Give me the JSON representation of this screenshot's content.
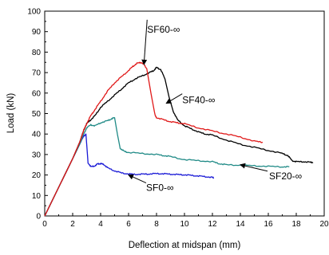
{
  "chart_data": {
    "type": "line",
    "title": "",
    "xlabel": "Deflection at midspan (mm)",
    "ylabel": "Load (kN)",
    "xlim": [
      0,
      20
    ],
    "ylim": [
      0,
      100
    ],
    "xticks": [
      0,
      2,
      4,
      6,
      8,
      10,
      12,
      14,
      16,
      18,
      20
    ],
    "yticks": [
      0,
      10,
      20,
      30,
      40,
      50,
      60,
      70,
      80,
      90,
      100
    ],
    "grid": false,
    "legend": "none",
    "series": [
      {
        "name": "SF0-∞",
        "color": "#1a1ad6",
        "x": [
          0,
          0.5,
          1.0,
          1.5,
          2.0,
          2.5,
          2.8,
          2.95,
          3.1,
          3.3,
          3.6,
          3.8,
          4.0,
          4.2,
          4.5,
          5.0,
          5.5,
          6.0,
          6.5,
          7.0,
          7.5,
          8.0,
          8.5,
          9.0,
          9.5,
          10.0,
          10.5,
          11.0,
          11.5,
          12.0,
          12.1
        ],
        "y": [
          0,
          7,
          14,
          21,
          28,
          35,
          39,
          40,
          26,
          24,
          24.5,
          25.5,
          25.5,
          25.3,
          23.5,
          22,
          21,
          20.5,
          20.3,
          20.4,
          20.5,
          20.7,
          20.6,
          20.4,
          20.2,
          20.1,
          19.8,
          19.5,
          19.2,
          18.8,
          18.7
        ]
      },
      {
        "name": "SF20-∞",
        "color": "#1f8a86",
        "x": [
          0,
          0.5,
          1.0,
          1.5,
          2.0,
          2.5,
          2.8,
          3.0,
          3.3,
          3.6,
          4.0,
          4.5,
          4.8,
          5.0,
          5.2,
          5.4,
          5.7,
          6.0,
          7.0,
          8.0,
          8.5,
          9.0,
          10.0,
          11.0,
          12.0,
          12.5,
          13.0,
          14.0,
          15.0,
          16.0,
          17.0,
          17.5
        ],
        "y": [
          0,
          7,
          14,
          21,
          28,
          35,
          40,
          43,
          44.5,
          44,
          45.5,
          46.5,
          47.5,
          48,
          40,
          33,
          31.5,
          31,
          30.5,
          30,
          29.5,
          29,
          27.5,
          27,
          26.5,
          25.5,
          25,
          24.8,
          24.5,
          24.2,
          24,
          24
        ]
      },
      {
        "name": "SF40-∞",
        "color": "#000000",
        "x": [
          0,
          0.5,
          1.0,
          1.5,
          2.0,
          2.5,
          2.8,
          3.0,
          3.3,
          3.6,
          4.0,
          4.5,
          5.0,
          5.5,
          6.0,
          6.5,
          7.0,
          7.5,
          7.8,
          8.0,
          8.3,
          8.6,
          8.9,
          9.2,
          9.5,
          10.0,
          10.5,
          11.0,
          11.5,
          12.0,
          13.0,
          14.0,
          15.0,
          16.0,
          17.0,
          17.4,
          17.7,
          18.0,
          18.5,
          19.0,
          19.2
        ],
        "y": [
          0,
          7,
          14,
          21,
          28,
          36,
          42,
          45,
          47,
          49,
          53,
          56,
          59,
          62,
          65,
          67,
          68.5,
          70,
          71,
          72.5,
          71.5,
          67,
          58,
          51,
          47,
          44,
          42.5,
          41,
          40,
          39.5,
          37,
          35,
          33.5,
          32,
          30.5,
          29.5,
          27,
          26.5,
          26.5,
          26.2,
          26.2
        ]
      },
      {
        "name": "SF60-∞",
        "color": "#e01818",
        "x": [
          0,
          0.5,
          1.0,
          1.5,
          2.0,
          2.5,
          2.8,
          3.0,
          3.3,
          3.6,
          4.0,
          4.5,
          5.0,
          5.5,
          6.0,
          6.3,
          6.6,
          6.9,
          7.1,
          7.3,
          7.6,
          7.9,
          8.0,
          8.5,
          9.0,
          9.5,
          10.0,
          11.0,
          12.0,
          13.0,
          14.0,
          15.0,
          15.6
        ],
        "y": [
          0,
          7,
          14,
          21,
          28,
          36,
          42,
          45,
          49,
          52,
          56,
          61,
          65,
          68,
          71,
          73,
          74.5,
          75,
          74,
          72,
          60,
          49,
          48,
          47,
          46,
          45.5,
          45,
          43,
          41.5,
          40,
          38.5,
          36.5,
          36
        ]
      }
    ],
    "annotations": [
      {
        "text": "SF60-∞",
        "target_x": 7.1,
        "target_y": 74
      },
      {
        "text": "SF40-∞",
        "target_x": 8.7,
        "target_y": 55
      },
      {
        "text": "SF20-∞",
        "target_x": 14.0,
        "target_y": 25
      },
      {
        "text": "SF0-∞",
        "target_x": 6.0,
        "target_y": 20
      }
    ]
  }
}
